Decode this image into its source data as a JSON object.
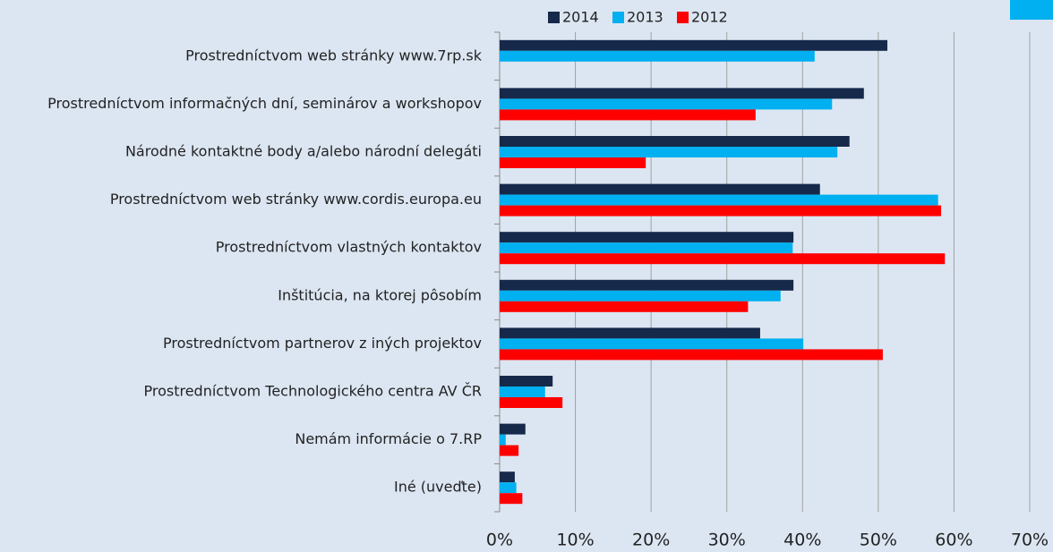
{
  "chart_data": {
    "type": "hbar",
    "categories": [
      "Prostredníctvom web stránky www.7rp.sk",
      "Prostredníctvom informačných dní, seminárov a workshopov",
      "Národné kontaktné body a/alebo národní delegáti",
      "Prostredníctvom web stránky www.cordis.europa.eu",
      "Prostredníctvom vlastných kontaktov",
      "Inštitúcia, na ktorej pôsobím",
      "Prostredníctvom partnerov z iných projektov",
      "Prostredníctvom Technologického centra AV ČR",
      "Nemám informácie o 7.RP",
      "Iné (uveďte)"
    ],
    "series": [
      {
        "name": "2014",
        "color": "#16294a",
        "values": [
          51.2,
          48.1,
          46.2,
          42.3,
          38.8,
          38.8,
          34.4,
          7.0,
          3.4,
          2.0
        ]
      },
      {
        "name": "2013",
        "color": "#00b0f0",
        "values": [
          41.6,
          43.9,
          44.6,
          57.9,
          38.7,
          37.1,
          40.1,
          6.0,
          0.8,
          2.2
        ]
      },
      {
        "name": "2012",
        "color": "#ff0000",
        "values": [
          null,
          33.8,
          19.3,
          58.3,
          58.8,
          32.8,
          50.6,
          8.3,
          2.5,
          3.0
        ]
      }
    ],
    "xlim": [
      0,
      70
    ],
    "xticks": [
      {
        "value": 0,
        "label": "0%"
      },
      {
        "value": 10,
        "label": "10%"
      },
      {
        "value": 20,
        "label": "20%"
      },
      {
        "value": 30,
        "label": "30%"
      },
      {
        "value": 40,
        "label": "40%"
      },
      {
        "value": 50,
        "label": "50%"
      },
      {
        "value": 60,
        "label": "60%"
      },
      {
        "value": 70,
        "label": "70%"
      }
    ],
    "grid": true
  }
}
